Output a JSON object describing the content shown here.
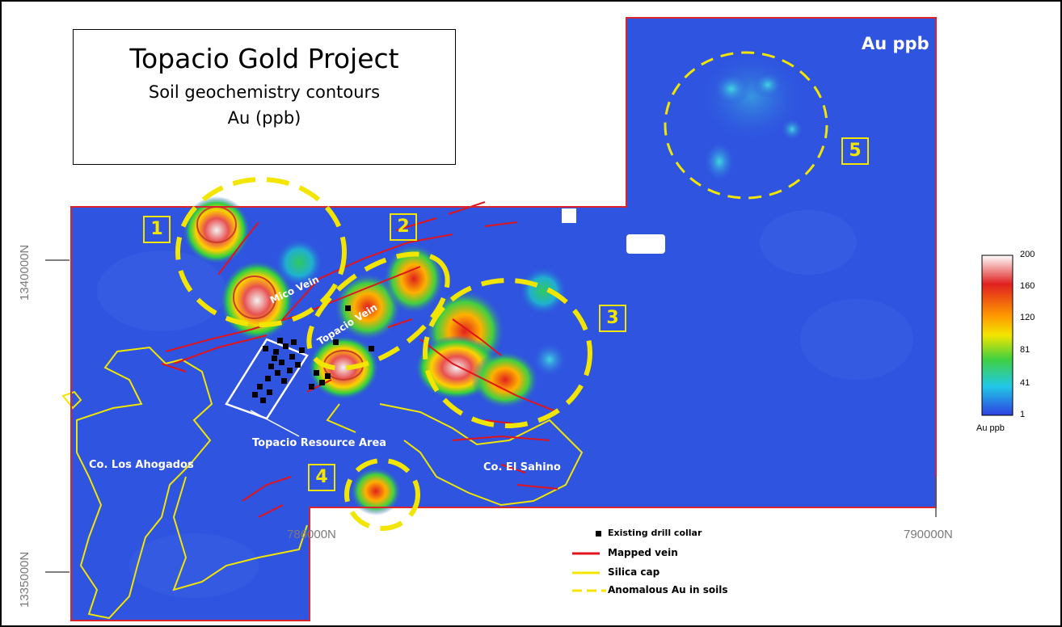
{
  "title": {
    "main": "Topacio Gold Project",
    "sub": "Soil geochemistry contours",
    "unit": "Au (ppb)"
  },
  "map_label": "Au ppb",
  "zones": [
    "1",
    "2",
    "3",
    "4",
    "5"
  ],
  "place_labels": {
    "mico_vein": "Mico Vein",
    "topacio_vein": "Topacio Vein",
    "resource_area": "Topacio Resource Area",
    "los_ahogados": "Co. Los Ahogados",
    "el_sahino": "Co. El Sahino"
  },
  "axes": {
    "northing_top": "1340000N",
    "northing_bottom": "1335000N",
    "easting_left": "786000N",
    "easting_right": "790000N"
  },
  "legend": {
    "drill_collar": "Existing drill collar",
    "mapped_vein": "Mapped vein",
    "silica_cap": "Silica cap",
    "anomalous_au": "Anomalous Au in soils"
  },
  "color_scale": {
    "title": "Au ppb",
    "ticks": [
      "200",
      "160",
      "120",
      "81",
      "41",
      "1"
    ]
  },
  "colors": {
    "base": "#2f54e0",
    "boundary": "#d8242c",
    "vein": "#e0141c",
    "silica": "#f2e600",
    "anomaly": "#f2e600"
  }
}
